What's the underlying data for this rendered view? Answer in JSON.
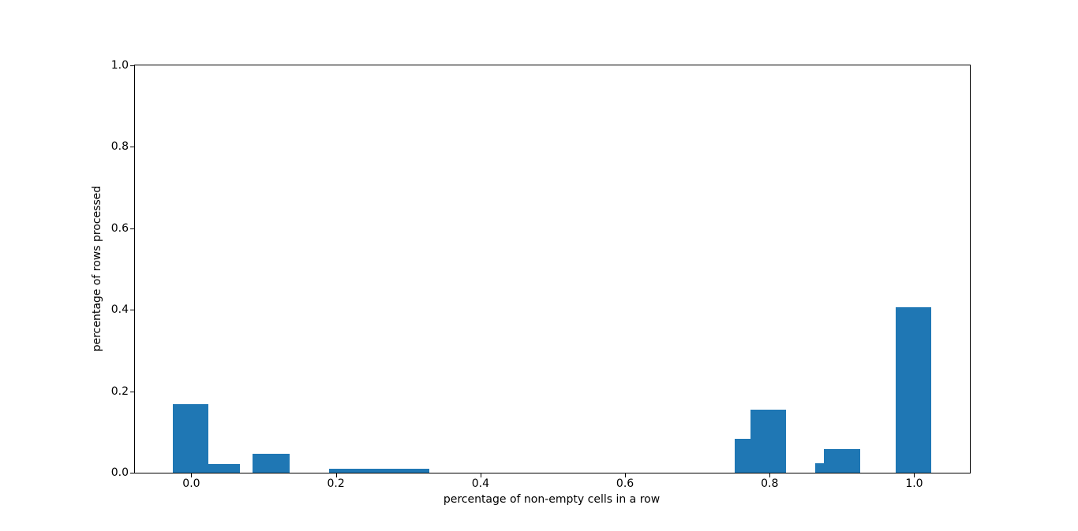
{
  "chart_data": {
    "type": "bar",
    "variant": "histogram",
    "title": "",
    "xlabel": "percentage of non-empty cells in a row",
    "ylabel": "percentage of rows processed",
    "xlim": [
      -0.078,
      1.077
    ],
    "ylim": [
      0,
      1.0
    ],
    "grid": false,
    "legend": false,
    "bar_color": "#1f77b4",
    "axis_color": "#000000",
    "background_color": "#ffffff",
    "x_ticks": [
      {
        "value": 0.0,
        "label": "0.0"
      },
      {
        "value": 0.2,
        "label": "0.2"
      },
      {
        "value": 0.4,
        "label": "0.4"
      },
      {
        "value": 0.6,
        "label": "0.6"
      },
      {
        "value": 0.8,
        "label": "0.8"
      },
      {
        "value": 1.0,
        "label": "1.0"
      }
    ],
    "y_ticks": [
      {
        "value": 0.0,
        "label": "0.0"
      },
      {
        "value": 0.2,
        "label": "0.2"
      },
      {
        "value": 0.4,
        "label": "0.4"
      },
      {
        "value": 0.6,
        "label": "0.6"
      },
      {
        "value": 0.8,
        "label": "0.8"
      },
      {
        "value": 1.0,
        "label": "1.0"
      }
    ],
    "bars": [
      {
        "x0": -0.026,
        "x1": 0.024,
        "height": 0.169
      },
      {
        "x0": 0.024,
        "x1": 0.067,
        "height": 0.022
      },
      {
        "x0": 0.085,
        "x1": 0.136,
        "height": 0.047
      },
      {
        "x0": 0.191,
        "x1": 0.329,
        "height": 0.01
      },
      {
        "x0": 0.752,
        "x1": 0.774,
        "height": 0.084
      },
      {
        "x0": 0.774,
        "x1": 0.823,
        "height": 0.155
      },
      {
        "x0": 0.863,
        "x1": 0.875,
        "height": 0.023
      },
      {
        "x0": 0.875,
        "x1": 0.925,
        "height": 0.058
      },
      {
        "x0": 0.974,
        "x1": 1.024,
        "height": 0.406
      }
    ]
  }
}
